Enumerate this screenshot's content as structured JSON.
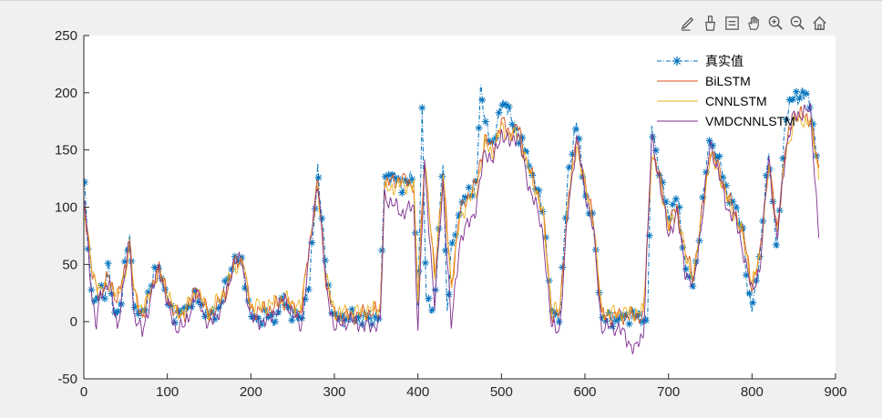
{
  "toolbar": {
    "tools": [
      "edit-icon",
      "brush-icon",
      "data-tips-icon",
      "pan-icon",
      "zoom-in-icon",
      "zoom-out-icon",
      "home-icon"
    ]
  },
  "colors": {
    "background": "#f0f0f0",
    "axes_bg": "#ffffff",
    "series": [
      "#0072bd",
      "#d95319",
      "#edb120",
      "#7e2f8e"
    ]
  },
  "chart_data": {
    "type": "line",
    "title": "",
    "xlabel": "",
    "ylabel": "",
    "xlim": [
      0,
      900
    ],
    "ylim": [
      -50,
      250
    ],
    "xticks": [
      0,
      100,
      200,
      300,
      400,
      500,
      600,
      700,
      800,
      900
    ],
    "yticks": [
      -50,
      0,
      50,
      100,
      150,
      200,
      250
    ],
    "xtick_labels": [
      "0",
      "100",
      "200",
      "300",
      "400",
      "500",
      "600",
      "700",
      "800",
      "900"
    ],
    "ytick_labels": [
      "-50",
      "0",
      "50",
      "100",
      "150",
      "200",
      "250"
    ],
    "grid": false,
    "legend_position": "top-right",
    "x_range": [
      1,
      880
    ],
    "series": [
      {
        "name": "真实值",
        "color": "#0072bd",
        "style": "dash-dot with asterisk markers",
        "x": [
          1,
          5,
          10,
          15,
          20,
          25,
          30,
          35,
          40,
          45,
          50,
          55,
          60,
          65,
          70,
          80,
          90,
          100,
          110,
          120,
          135,
          150,
          160,
          170,
          180,
          190,
          200,
          210,
          220,
          230,
          240,
          250,
          260,
          270,
          280,
          290,
          300,
          320,
          340,
          355,
          360,
          380,
          395,
          400,
          405,
          410,
          420,
          430,
          435,
          440,
          450,
          460,
          470,
          475,
          480,
          490,
          500,
          510,
          520,
          530,
          540,
          550,
          560,
          570,
          580,
          590,
          600,
          610,
          620,
          640,
          660,
          670,
          675,
          680,
          690,
          700,
          710,
          720,
          730,
          740,
          750,
          760,
          770,
          780,
          790,
          795,
          800,
          810,
          820,
          830,
          840,
          850,
          860,
          870,
          880
        ],
        "y": [
          118,
          70,
          20,
          14,
          28,
          25,
          50,
          5,
          10,
          20,
          55,
          75,
          20,
          3,
          5,
          30,
          52,
          18,
          5,
          8,
          22,
          5,
          8,
          30,
          55,
          52,
          5,
          2,
          3,
          3,
          22,
          5,
          3,
          30,
          135,
          45,
          3,
          3,
          3,
          5,
          130,
          120,
          125,
          15,
          180,
          20,
          10,
          145,
          8,
          60,
          100,
          110,
          120,
          200,
          180,
          150,
          195,
          180,
          160,
          150,
          120,
          100,
          5,
          5,
          130,
          175,
          110,
          85,
          3,
          3,
          3,
          3,
          5,
          170,
          130,
          90,
          110,
          50,
          30,
          100,
          160,
          140,
          115,
          100,
          80,
          20,
          12,
          60,
          150,
          60,
          180,
          195,
          200,
          190,
          135
        ]
      },
      {
        "name": "BiLSTM",
        "color": "#d95319",
        "style": "solid",
        "x": [
          1,
          10,
          20,
          30,
          40,
          50,
          55,
          60,
          70,
          80,
          90,
          100,
          110,
          120,
          135,
          150,
          170,
          180,
          190,
          200,
          220,
          240,
          260,
          280,
          290,
          300,
          320,
          340,
          355,
          360,
          380,
          395,
          400,
          408,
          420,
          430,
          440,
          450,
          460,
          470,
          480,
          490,
          500,
          510,
          520,
          530,
          540,
          550,
          560,
          570,
          580,
          590,
          600,
          610,
          620,
          640,
          660,
          670,
          680,
          690,
          700,
          710,
          720,
          730,
          740,
          750,
          760,
          770,
          780,
          790,
          800,
          810,
          820,
          830,
          840,
          850,
          860,
          870,
          880
        ],
        "y": [
          100,
          40,
          22,
          40,
          18,
          48,
          70,
          25,
          5,
          25,
          48,
          22,
          6,
          6,
          30,
          5,
          25,
          50,
          55,
          10,
          10,
          18,
          8,
          122,
          35,
          5,
          5,
          8,
          10,
          120,
          125,
          120,
          20,
          145,
          40,
          130,
          30,
          95,
          110,
          120,
          160,
          150,
          175,
          165,
          170,
          140,
          120,
          95,
          8,
          8,
          110,
          160,
          120,
          90,
          5,
          5,
          5,
          5,
          150,
          125,
          85,
          100,
          60,
          40,
          95,
          150,
          135,
          110,
          95,
          75,
          30,
          60,
          140,
          80,
          150,
          180,
          180,
          178,
          130
        ]
      },
      {
        "name": "CNNLSTM",
        "color": "#edb120",
        "style": "solid",
        "x": [
          1,
          10,
          20,
          30,
          40,
          50,
          55,
          60,
          70,
          80,
          90,
          100,
          110,
          120,
          135,
          150,
          170,
          180,
          190,
          200,
          220,
          240,
          260,
          280,
          290,
          300,
          320,
          340,
          355,
          360,
          380,
          395,
          400,
          408,
          420,
          430,
          440,
          450,
          460,
          470,
          480,
          490,
          500,
          510,
          520,
          530,
          540,
          550,
          560,
          570,
          580,
          590,
          600,
          610,
          620,
          640,
          660,
          670,
          680,
          690,
          700,
          710,
          720,
          730,
          740,
          750,
          760,
          770,
          780,
          790,
          800,
          810,
          820,
          830,
          840,
          850,
          860,
          870,
          880
        ],
        "y": [
          95,
          45,
          25,
          35,
          20,
          45,
          65,
          28,
          8,
          28,
          45,
          25,
          8,
          8,
          28,
          8,
          28,
          48,
          52,
          14,
          14,
          20,
          12,
          118,
          38,
          8,
          8,
          10,
          12,
          115,
          120,
          118,
          22,
          140,
          42,
          125,
          32,
          90,
          105,
          115,
          155,
          148,
          170,
          162,
          165,
          138,
          118,
          92,
          10,
          10,
          105,
          155,
          118,
          88,
          8,
          8,
          8,
          8,
          145,
          122,
          82,
          98,
          58,
          38,
          92,
          145,
          132,
          108,
          92,
          72,
          32,
          58,
          135,
          78,
          145,
          175,
          176,
          175,
          128
        ]
      },
      {
        "name": "VMDCNNLSTM",
        "color": "#7e2f8e",
        "style": "solid",
        "x": [
          1,
          10,
          15,
          20,
          30,
          40,
          50,
          55,
          60,
          70,
          80,
          90,
          100,
          110,
          120,
          135,
          150,
          170,
          180,
          190,
          200,
          220,
          240,
          260,
          280,
          290,
          300,
          320,
          340,
          355,
          360,
          380,
          395,
          400,
          408,
          420,
          430,
          440,
          450,
          460,
          470,
          480,
          490,
          500,
          510,
          520,
          530,
          540,
          550,
          560,
          570,
          580,
          590,
          600,
          610,
          620,
          640,
          660,
          670,
          680,
          690,
          700,
          710,
          720,
          730,
          740,
          750,
          760,
          770,
          780,
          790,
          800,
          810,
          820,
          830,
          840,
          850,
          860,
          870,
          880
        ],
        "y": [
          105,
          20,
          -5,
          25,
          35,
          -5,
          45,
          72,
          5,
          -10,
          20,
          50,
          15,
          -5,
          -5,
          25,
          -5,
          20,
          55,
          50,
          2,
          0,
          20,
          -5,
          125,
          30,
          -5,
          2,
          -5,
          0,
          110,
          95,
          100,
          -5,
          135,
          15,
          120,
          -5,
          70,
          85,
          100,
          150,
          140,
          165,
          155,
          165,
          125,
          105,
          75,
          -5,
          -5,
          100,
          160,
          115,
          80,
          -5,
          -5,
          -25,
          -10,
          160,
          120,
          75,
          95,
          45,
          30,
          90,
          155,
          130,
          100,
          90,
          60,
          25,
          50,
          145,
          70,
          150,
          180,
          182,
          185,
          75
        ]
      }
    ]
  }
}
